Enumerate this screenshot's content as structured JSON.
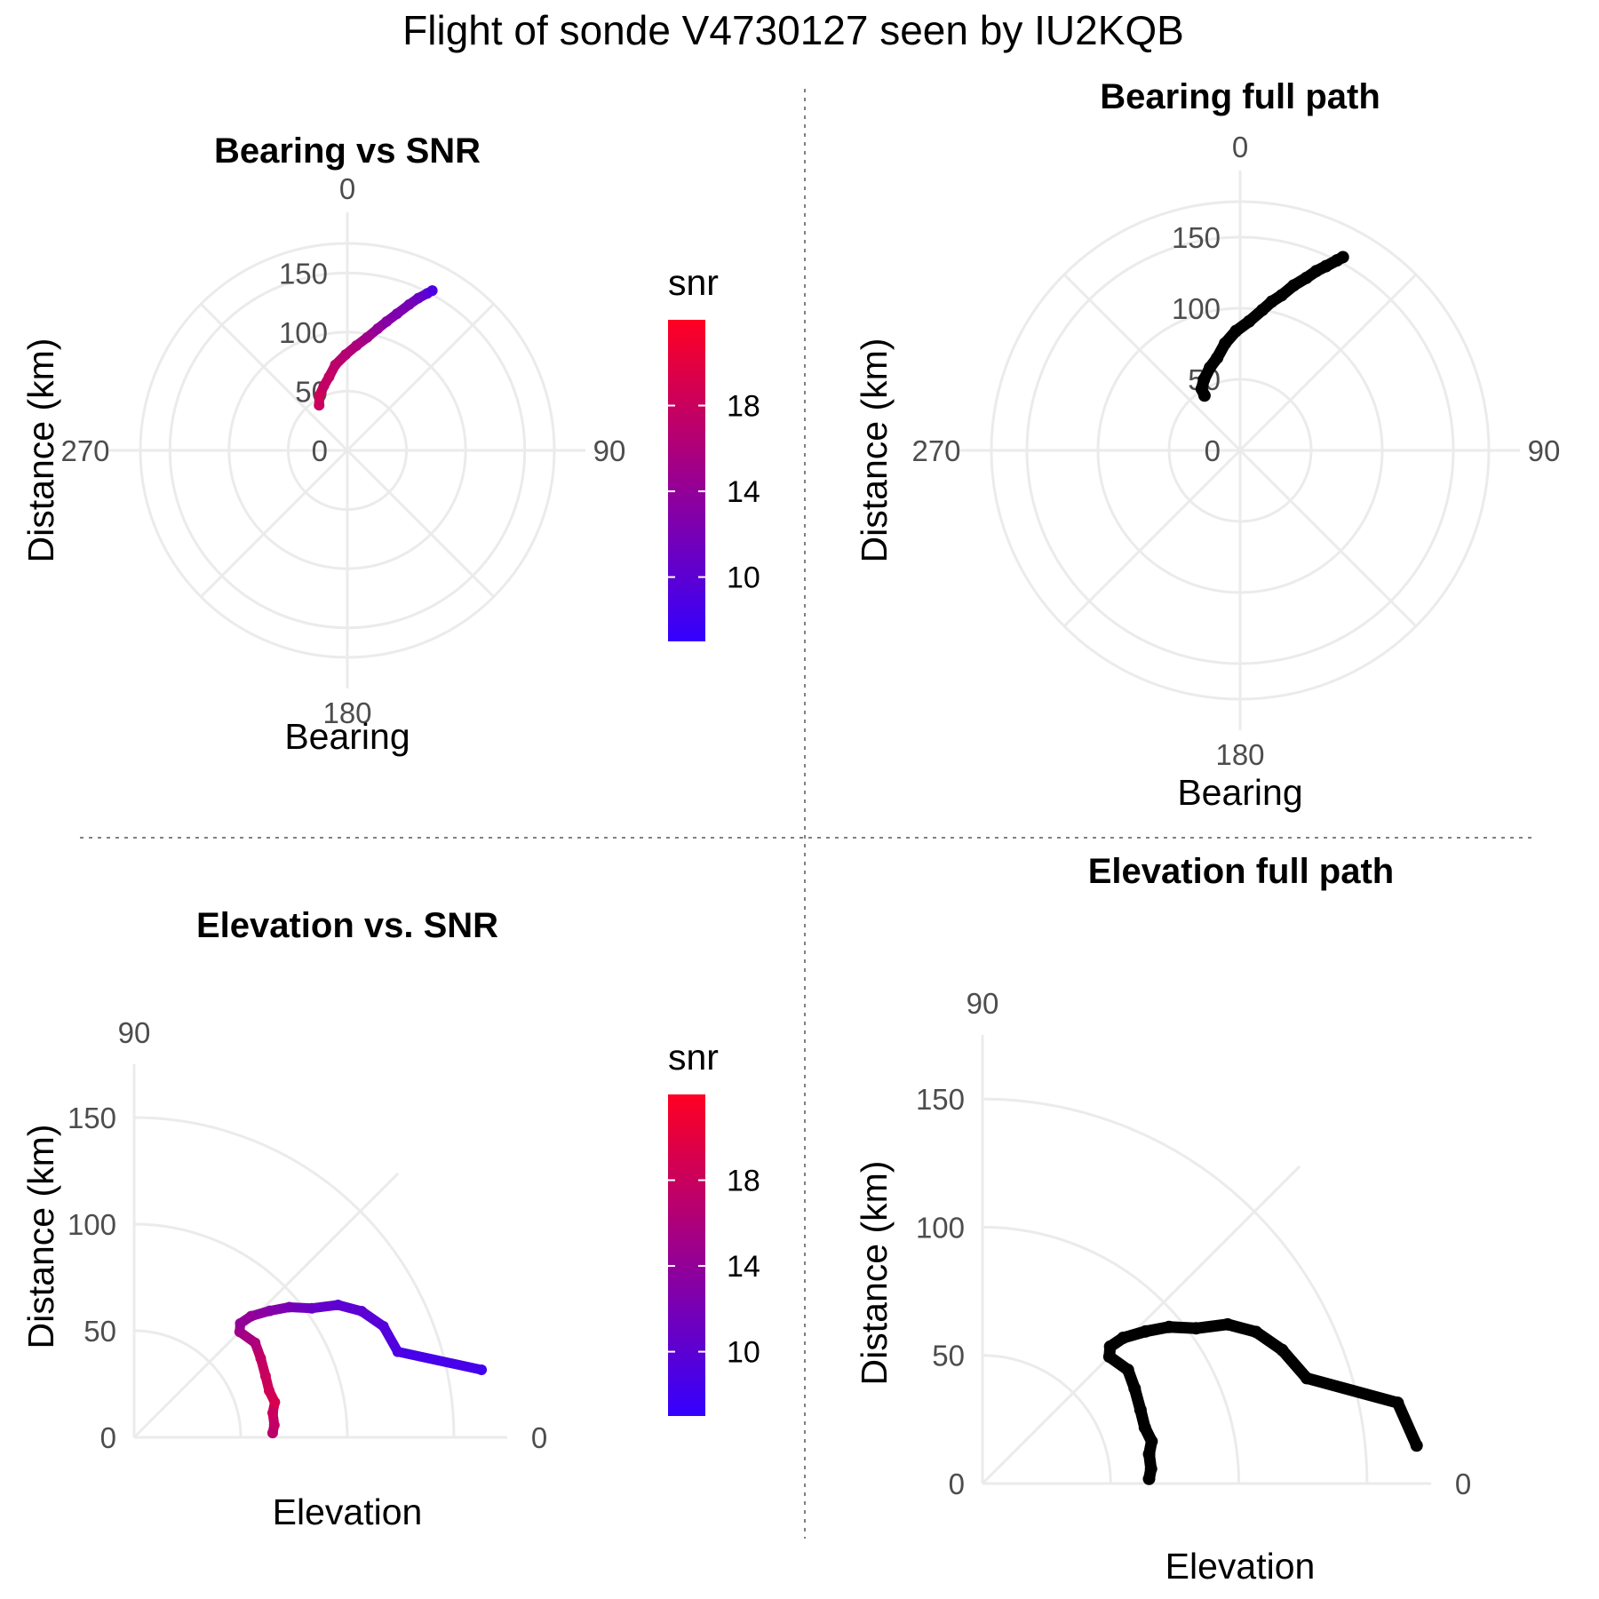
{
  "title": "Flight of sonde V4730127 seen by IU2KQB",
  "chart_data": [
    {
      "type": "scatter",
      "coord": "polar",
      "title": "Bearing vs SNR",
      "xlabel": "Bearing",
      "ylabel": "Distance (km)",
      "theta_ticks": [
        "0",
        "90",
        "180",
        "270"
      ],
      "r_ticks": [
        "0",
        "50",
        "100",
        "150"
      ],
      "rlim": [
        0,
        175
      ],
      "color_by": "snr",
      "legend": {
        "title": "snr",
        "ticks": [
          "10",
          "14",
          "18"
        ],
        "range": [
          7,
          22
        ],
        "low_color": "#3300ff",
        "high_color": "#ff0022"
      },
      "points": [
        [
          328,
          45,
          18
        ],
        [
          333,
          52,
          18.5
        ],
        [
          340,
          58,
          17.5
        ],
        [
          346,
          64,
          17.5
        ],
        [
          352,
          73,
          17
        ],
        [
          359,
          81,
          16.5
        ],
        [
          5,
          89,
          16
        ],
        [
          10,
          97,
          15
        ],
        [
          14,
          106,
          14
        ],
        [
          17,
          114,
          13
        ],
        [
          20,
          123,
          12.5
        ],
        [
          23,
          134,
          12
        ],
        [
          25,
          142,
          11
        ],
        [
          27,
          149,
          10
        ],
        [
          28,
          153,
          9
        ]
      ]
    },
    {
      "type": "scatter",
      "coord": "polar",
      "title": "Bearing full path",
      "xlabel": "Bearing",
      "ylabel": "Distance (km)",
      "theta_ticks": [
        "0",
        "90",
        "180",
        "270"
      ],
      "r_ticks": [
        "0",
        "50",
        "100",
        "150"
      ],
      "rlim": [
        0,
        175
      ],
      "color": "#000000",
      "points": [
        [
          327,
          46
        ],
        [
          328,
          51
        ],
        [
          333,
          56
        ],
        [
          340,
          62
        ],
        [
          346,
          67
        ],
        [
          352,
          76
        ],
        [
          358,
          84
        ],
        [
          4,
          91
        ],
        [
          9,
          100
        ],
        [
          12,
          107
        ],
        [
          15,
          113
        ],
        [
          18,
          122
        ],
        [
          21,
          130
        ],
        [
          23,
          137
        ],
        [
          25,
          143
        ],
        [
          27,
          150
        ],
        [
          28,
          154
        ]
      ]
    },
    {
      "type": "scatter",
      "coord": "polar",
      "title": "Elevation vs. SNR",
      "xlabel": "Elevation",
      "ylabel": "Distance (km)",
      "theta_ticks": [
        "0",
        "90"
      ],
      "r_ticks": [
        "0",
        "50",
        "100",
        "150"
      ],
      "rlim": [
        0,
        175
      ],
      "color_by": "snr",
      "legend": {
        "title": "snr",
        "ticks": [
          "10",
          "14",
          "18"
        ],
        "range": [
          7,
          22
        ],
        "low_color": "#3300ff",
        "high_color": "#ff0022"
      },
      "points": [
        [
          1.8,
          65,
          17
        ],
        [
          5,
          66,
          17.5
        ],
        [
          10,
          66,
          18
        ],
        [
          14,
          68,
          19
        ],
        [
          19,
          67,
          18.5
        ],
        [
          25,
          68,
          18
        ],
        [
          32,
          70,
          17.5
        ],
        [
          38,
          72,
          16
        ],
        [
          45,
          70,
          15
        ],
        [
          47,
          73,
          14
        ],
        [
          46,
          79,
          14
        ],
        [
          43,
          87,
          13
        ],
        [
          40,
          95,
          12
        ],
        [
          36,
          103,
          11
        ],
        [
          33,
          114,
          10
        ],
        [
          29,
          122,
          10
        ],
        [
          24,
          128,
          9.5
        ],
        [
          18,
          130,
          9
        ],
        [
          11,
          166,
          8
        ]
      ]
    },
    {
      "type": "scatter",
      "coord": "polar",
      "title": "Elevation full path",
      "xlabel": "Elevation",
      "ylabel": "Distance (km)",
      "theta_ticks": [
        "0",
        "90"
      ],
      "r_ticks": [
        "0",
        "50",
        "100",
        "150"
      ],
      "rlim": [
        0,
        175
      ],
      "color": "#000000",
      "points": [
        [
          1.6,
          65
        ],
        [
          5,
          66
        ],
        [
          10,
          66
        ],
        [
          14,
          68
        ],
        [
          19,
          67
        ],
        [
          25,
          68
        ],
        [
          32,
          70
        ],
        [
          38,
          72
        ],
        [
          45,
          70
        ],
        [
          47,
          73
        ],
        [
          46,
          79
        ],
        [
          43,
          87
        ],
        [
          40,
          95
        ],
        [
          36,
          103
        ],
        [
          33,
          114
        ],
        [
          29,
          122
        ],
        [
          24,
          128
        ],
        [
          18,
          133
        ],
        [
          11,
          165
        ],
        [
          5,
          170
        ]
      ]
    }
  ]
}
